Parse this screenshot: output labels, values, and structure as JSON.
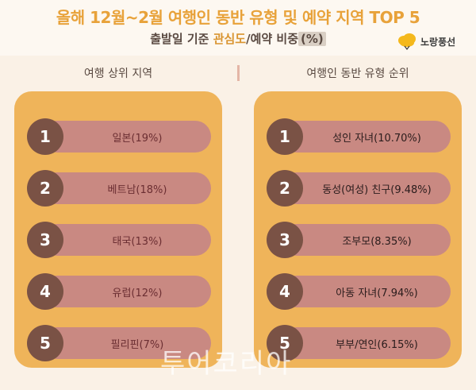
{
  "header": {
    "title": "올해 12월~2월 여행인 동반 유형 및 예약 지역 TOP 5",
    "subtitle_pre": "출발일 기준 ",
    "subtitle_hl": "관심도",
    "subtitle_mid": "/예약 비중",
    "subtitle_pct": "(%)",
    "brand": "노랑풍선"
  },
  "left": {
    "heading": "여행 상위 지역",
    "items": [
      {
        "rank": "1",
        "label": "일본(19%)"
      },
      {
        "rank": "2",
        "label": "베트남(18%)"
      },
      {
        "rank": "3",
        "label": "태국(13%)"
      },
      {
        "rank": "4",
        "label": "유럽(12%)"
      },
      {
        "rank": "5",
        "label": "필리핀(7%)"
      }
    ]
  },
  "right": {
    "heading": "여행인 동반 유형 순위",
    "items": [
      {
        "rank": "1",
        "label": "성인 자녀(10.70%)"
      },
      {
        "rank": "2",
        "label": "동성(여성) 친구(9.48%)"
      },
      {
        "rank": "3",
        "label": "조부모(8.35%)"
      },
      {
        "rank": "4",
        "label": "아동 자녀(7.94%)"
      },
      {
        "rank": "5",
        "label": "부부/연인(6.15%)"
      }
    ]
  },
  "watermark": "투어코리아",
  "colors": {
    "background": "#faf1e6",
    "panel": "#efb45a",
    "pill": "#c98982",
    "circle": "#7a5245",
    "title": "#e8a23a"
  }
}
